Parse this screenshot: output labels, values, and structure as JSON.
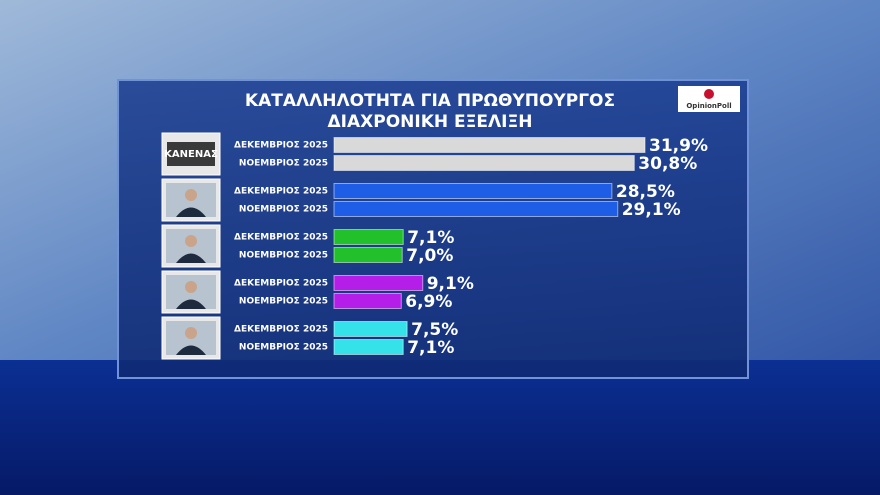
{
  "chart_data": {
    "type": "bar",
    "title": "ΚΑΤΑΛΛΗΛΟΤΗΤΑ ΓΙΑ ΠΡΩΘΥΠΟΥΡΓΟΣ",
    "subtitle": "ΔΙΑΧΡΟΝΙΚΗ ΕΞΕΛΙΞΗ",
    "logo": "OpinionPoll",
    "categories": [
      "ΚΑΝΕΝΑΣ",
      null,
      null,
      null,
      null
    ],
    "colors": [
      "#d9d9d9",
      "#1e5ee6",
      "#22c12b",
      "#b51ee8",
      "#36e2ea"
    ],
    "series": [
      {
        "name": "ΔΕΚΕΜΒΡΙΟΣ 2025",
        "values": [
          31.9,
          28.5,
          7.1,
          9.1,
          7.5
        ],
        "value_labels": [
          "31,9%",
          "28,5%",
          "7,1%",
          "9,1%",
          "7,5%"
        ]
      },
      {
        "name": "ΝΟΕΜΒΡΙΟΣ 2025",
        "values": [
          30.8,
          29.1,
          7.0,
          6.9,
          7.1
        ],
        "value_labels": [
          "30,8%",
          "29,1%",
          "7,0%",
          "6,9%",
          "7,1%"
        ]
      }
    ]
  }
}
